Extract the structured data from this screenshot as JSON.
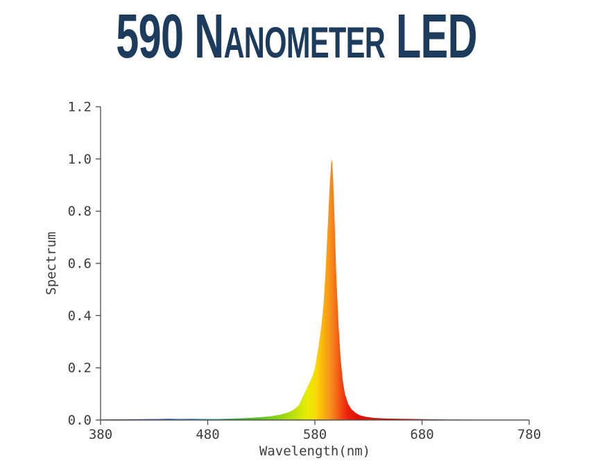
{
  "title": "590 Nanometer LED",
  "colors": {
    "title_text": "#1d3b5c",
    "axis": "#555555",
    "tick_text": "#3d3d3d",
    "background": "#ffffff"
  },
  "chart_data": {
    "type": "area",
    "title": "590 Nanometer LED",
    "xlabel": "Wavelength(nm)",
    "ylabel": "Spectrum",
    "xlim": [
      380,
      780
    ],
    "ylim": [
      0,
      1.2
    ],
    "xticks": [
      380,
      480,
      580,
      680,
      780
    ],
    "yticks": [
      0.0,
      0.2,
      0.4,
      0.6,
      0.8,
      1.0,
      1.2
    ],
    "grid": false,
    "legend": false,
    "peak_wavelength_nm": 595,
    "peak_value": 1.0,
    "points": [
      [
        380,
        0.002
      ],
      [
        410,
        0.003
      ],
      [
        435,
        0.004
      ],
      [
        445,
        0.005
      ],
      [
        455,
        0.004
      ],
      [
        465,
        0.005
      ],
      [
        478,
        0.004
      ],
      [
        490,
        0.004
      ],
      [
        500,
        0.005
      ],
      [
        515,
        0.007
      ],
      [
        530,
        0.011
      ],
      [
        540,
        0.015
      ],
      [
        548,
        0.021
      ],
      [
        555,
        0.029
      ],
      [
        560,
        0.039
      ],
      [
        565,
        0.056
      ],
      [
        570,
        0.1
      ],
      [
        574,
        0.135
      ],
      [
        578,
        0.17
      ],
      [
        580,
        0.2
      ],
      [
        583,
        0.27
      ],
      [
        586,
        0.36
      ],
      [
        588,
        0.44
      ],
      [
        590,
        0.57
      ],
      [
        592,
        0.74
      ],
      [
        594,
        0.91
      ],
      [
        594.8,
        0.96
      ],
      [
        595.5,
        1.0
      ],
      [
        596.2,
        0.985
      ],
      [
        597,
        0.92
      ],
      [
        598.5,
        0.75
      ],
      [
        600,
        0.55
      ],
      [
        602,
        0.37
      ],
      [
        604,
        0.235
      ],
      [
        606,
        0.15
      ],
      [
        608,
        0.1
      ],
      [
        611,
        0.062
      ],
      [
        614,
        0.042
      ],
      [
        618,
        0.027
      ],
      [
        622,
        0.018
      ],
      [
        628,
        0.012
      ],
      [
        635,
        0.008
      ],
      [
        645,
        0.006
      ],
      [
        655,
        0.005
      ],
      [
        670,
        0.004
      ],
      [
        685,
        0.003
      ],
      [
        700,
        0.002
      ],
      [
        715,
        0.0015
      ],
      [
        740,
        0.001
      ],
      [
        780,
        0.001
      ]
    ],
    "spectrum_gradient": [
      [
        380,
        "#2b1b3d"
      ],
      [
        410,
        "#3c2a8e"
      ],
      [
        435,
        "#3455c4"
      ],
      [
        460,
        "#3d7fd2"
      ],
      [
        480,
        "#35a3b5"
      ],
      [
        495,
        "#2ead62"
      ],
      [
        510,
        "#39b32a"
      ],
      [
        530,
        "#63c51c"
      ],
      [
        548,
        "#93d413"
      ],
      [
        562,
        "#c3e20a"
      ],
      [
        573,
        "#e9ec04"
      ],
      [
        581,
        "#fbd806"
      ],
      [
        588,
        "#fbb10e"
      ],
      [
        595,
        "#f78d1d"
      ],
      [
        600,
        "#f56a17"
      ],
      [
        605,
        "#f14312"
      ],
      [
        611,
        "#ea1f0a"
      ],
      [
        620,
        "#e40d03"
      ],
      [
        650,
        "#d50d02"
      ],
      [
        675,
        "#b80a02"
      ],
      [
        700,
        "#8c0703"
      ],
      [
        730,
        "#531008"
      ],
      [
        780,
        "#2a1410"
      ]
    ]
  }
}
